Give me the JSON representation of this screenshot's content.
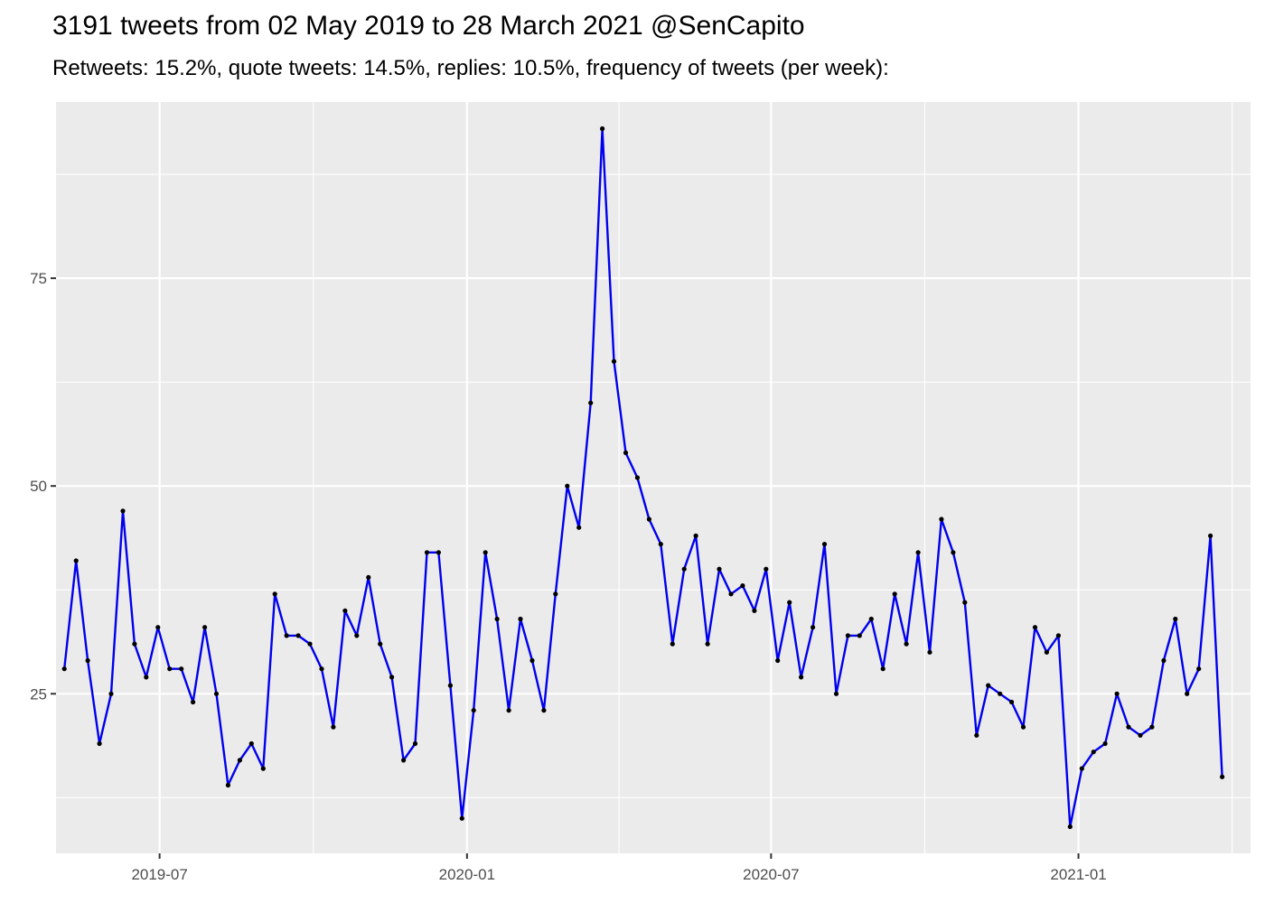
{
  "title": "3191 tweets from 02 May 2019 to 28 March 2021 @SenCapito",
  "subtitle": "Retweets: 15.2%, quote tweets: 14.5%, replies: 10.5%, frequency of tweets (per week):",
  "colors": {
    "line": "#0000ee",
    "point": "#000000",
    "panel": "#ebebeb",
    "grid": "#ffffff",
    "tick_text": "#4d4d4d"
  },
  "chart_data": {
    "type": "line",
    "title": "3191 tweets from 02 May 2019 to 28 March 2021 @SenCapito",
    "subtitle": "Retweets: 15.2%, quote tweets: 14.5%, replies: 10.5%, frequency of tweets (per week):",
    "xlabel": "",
    "ylabel": "",
    "x_start": "2019-05-05",
    "x_step_days": 7,
    "xlim": [
      "2019-04-30",
      "2021-04-14"
    ],
    "ylim": [
      5.8,
      96.2
    ],
    "x_ticks": [
      "2019-07-01",
      "2020-01-01",
      "2020-07-01",
      "2021-01-01"
    ],
    "x_tick_labels": [
      "2019-07",
      "2020-01",
      "2020-07",
      "2021-01"
    ],
    "y_ticks": [
      25,
      50,
      75
    ],
    "y_tick_labels": [
      "25",
      "50",
      "75"
    ],
    "grid": true,
    "legend": "none",
    "series": [
      {
        "values": [
          28,
          41,
          29,
          19,
          25,
          47,
          31,
          27,
          33,
          28,
          28,
          24,
          33,
          25,
          14,
          17,
          19,
          16,
          37,
          32,
          32,
          31,
          28,
          21,
          35,
          32,
          39,
          31,
          27,
          17,
          19,
          42,
          42,
          26,
          10,
          23,
          42,
          34,
          23,
          34,
          29,
          23,
          37,
          50,
          45,
          60,
          93,
          65,
          54,
          51,
          46,
          43,
          31,
          40,
          44,
          31,
          40,
          37,
          38,
          35,
          40,
          29,
          36,
          27,
          33,
          43,
          25,
          32,
          32,
          34,
          28,
          37,
          31,
          42,
          30,
          46,
          42,
          36,
          20,
          26,
          25,
          24,
          21,
          33,
          30,
          32,
          9,
          16,
          18,
          19,
          25,
          21,
          20,
          21,
          29,
          34,
          25,
          28,
          44,
          15
        ]
      }
    ]
  }
}
